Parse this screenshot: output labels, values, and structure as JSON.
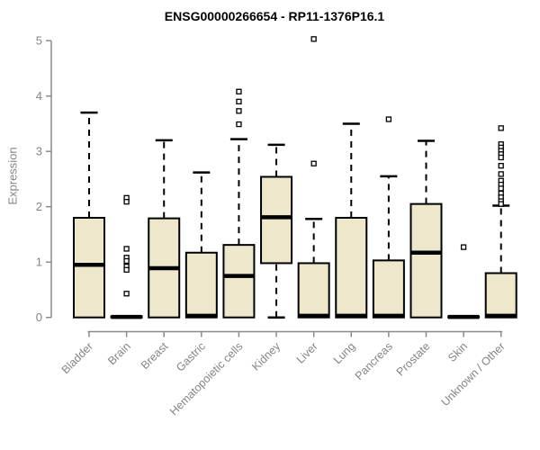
{
  "chart_data": {
    "type": "boxplot",
    "title": "ENSG00000266654 - RP11-1376P16.1",
    "ylabel": "Expression",
    "xlabel": "",
    "ylim": [
      0,
      5
    ],
    "yticks": [
      0,
      1,
      2,
      3,
      4,
      5
    ],
    "grid": false,
    "legend": null,
    "categories": [
      "Bladder",
      "Brain",
      "Breast",
      "Gastric",
      "Hematopoietic cells",
      "Kidney",
      "Liver",
      "Lung",
      "Pancreas",
      "Prostate",
      "Skin",
      "Unknown / Other"
    ],
    "boxes": [
      {
        "label": "Bladder",
        "whislo": 0,
        "q1": 0,
        "med": 0.95,
        "q3": 1.8,
        "whishi": 3.7,
        "outliers": []
      },
      {
        "label": "Brain",
        "whislo": 0,
        "q1": 0,
        "med": 0.01,
        "q3": 0.02,
        "whishi": 0.02,
        "outliers": [
          2.16,
          2.09,
          1.24,
          1.08,
          1.02,
          0.92,
          0.86,
          0.43
        ]
      },
      {
        "label": "Breast",
        "whislo": 0,
        "q1": 0,
        "med": 0.89,
        "q3": 1.79,
        "whishi": 3.2,
        "outliers": []
      },
      {
        "label": "Gastric",
        "whislo": 0,
        "q1": 0,
        "med": 0.03,
        "q3": 1.17,
        "whishi": 2.62,
        "outliers": []
      },
      {
        "label": "Hematopoietic cells",
        "whislo": 0,
        "q1": 0,
        "med": 0.75,
        "q3": 1.31,
        "whishi": 3.22,
        "outliers": [
          4.08,
          3.9,
          3.73,
          3.49
        ]
      },
      {
        "label": "Kidney",
        "whislo": 0,
        "q1": 0.98,
        "med": 1.81,
        "q3": 2.54,
        "whishi": 3.12,
        "outliers": []
      },
      {
        "label": "Liver",
        "whislo": 0,
        "q1": 0,
        "med": 0.03,
        "q3": 0.98,
        "whishi": 1.78,
        "outliers": [
          5.03,
          2.78
        ]
      },
      {
        "label": "Lung",
        "whislo": 0,
        "q1": 0,
        "med": 0.03,
        "q3": 1.8,
        "whishi": 3.5,
        "outliers": []
      },
      {
        "label": "Pancreas",
        "whislo": 0,
        "q1": 0,
        "med": 0.03,
        "q3": 1.03,
        "whishi": 2.55,
        "outliers": [
          3.58
        ]
      },
      {
        "label": "Prostate",
        "whislo": 0,
        "q1": 0,
        "med": 1.17,
        "q3": 2.05,
        "whishi": 3.19,
        "outliers": []
      },
      {
        "label": "Skin",
        "whislo": 0,
        "q1": 0,
        "med": 0.01,
        "q3": 0.02,
        "whishi": 0.02,
        "outliers": [
          1.27
        ]
      },
      {
        "label": "Unknown / Other",
        "whislo": 0,
        "q1": 0,
        "med": 0.03,
        "q3": 0.8,
        "whishi": 2.02,
        "outliers": [
          3.42,
          3.13,
          3.07,
          3.01,
          2.95,
          2.89,
          2.74,
          2.59,
          2.47,
          2.4,
          2.33,
          2.24,
          2.17,
          2.1,
          2.05
        ]
      }
    ],
    "colors": {
      "box_fill": "#EDE7CC",
      "box_line": "#000000",
      "median": "#000000",
      "whisker": "#000000",
      "outlier_fill": "#ffffff",
      "outlier_line": "#000000",
      "axis": "#8a8a8a",
      "tick_label": "#848484",
      "title": "#000000",
      "background": "#ffffff"
    }
  }
}
